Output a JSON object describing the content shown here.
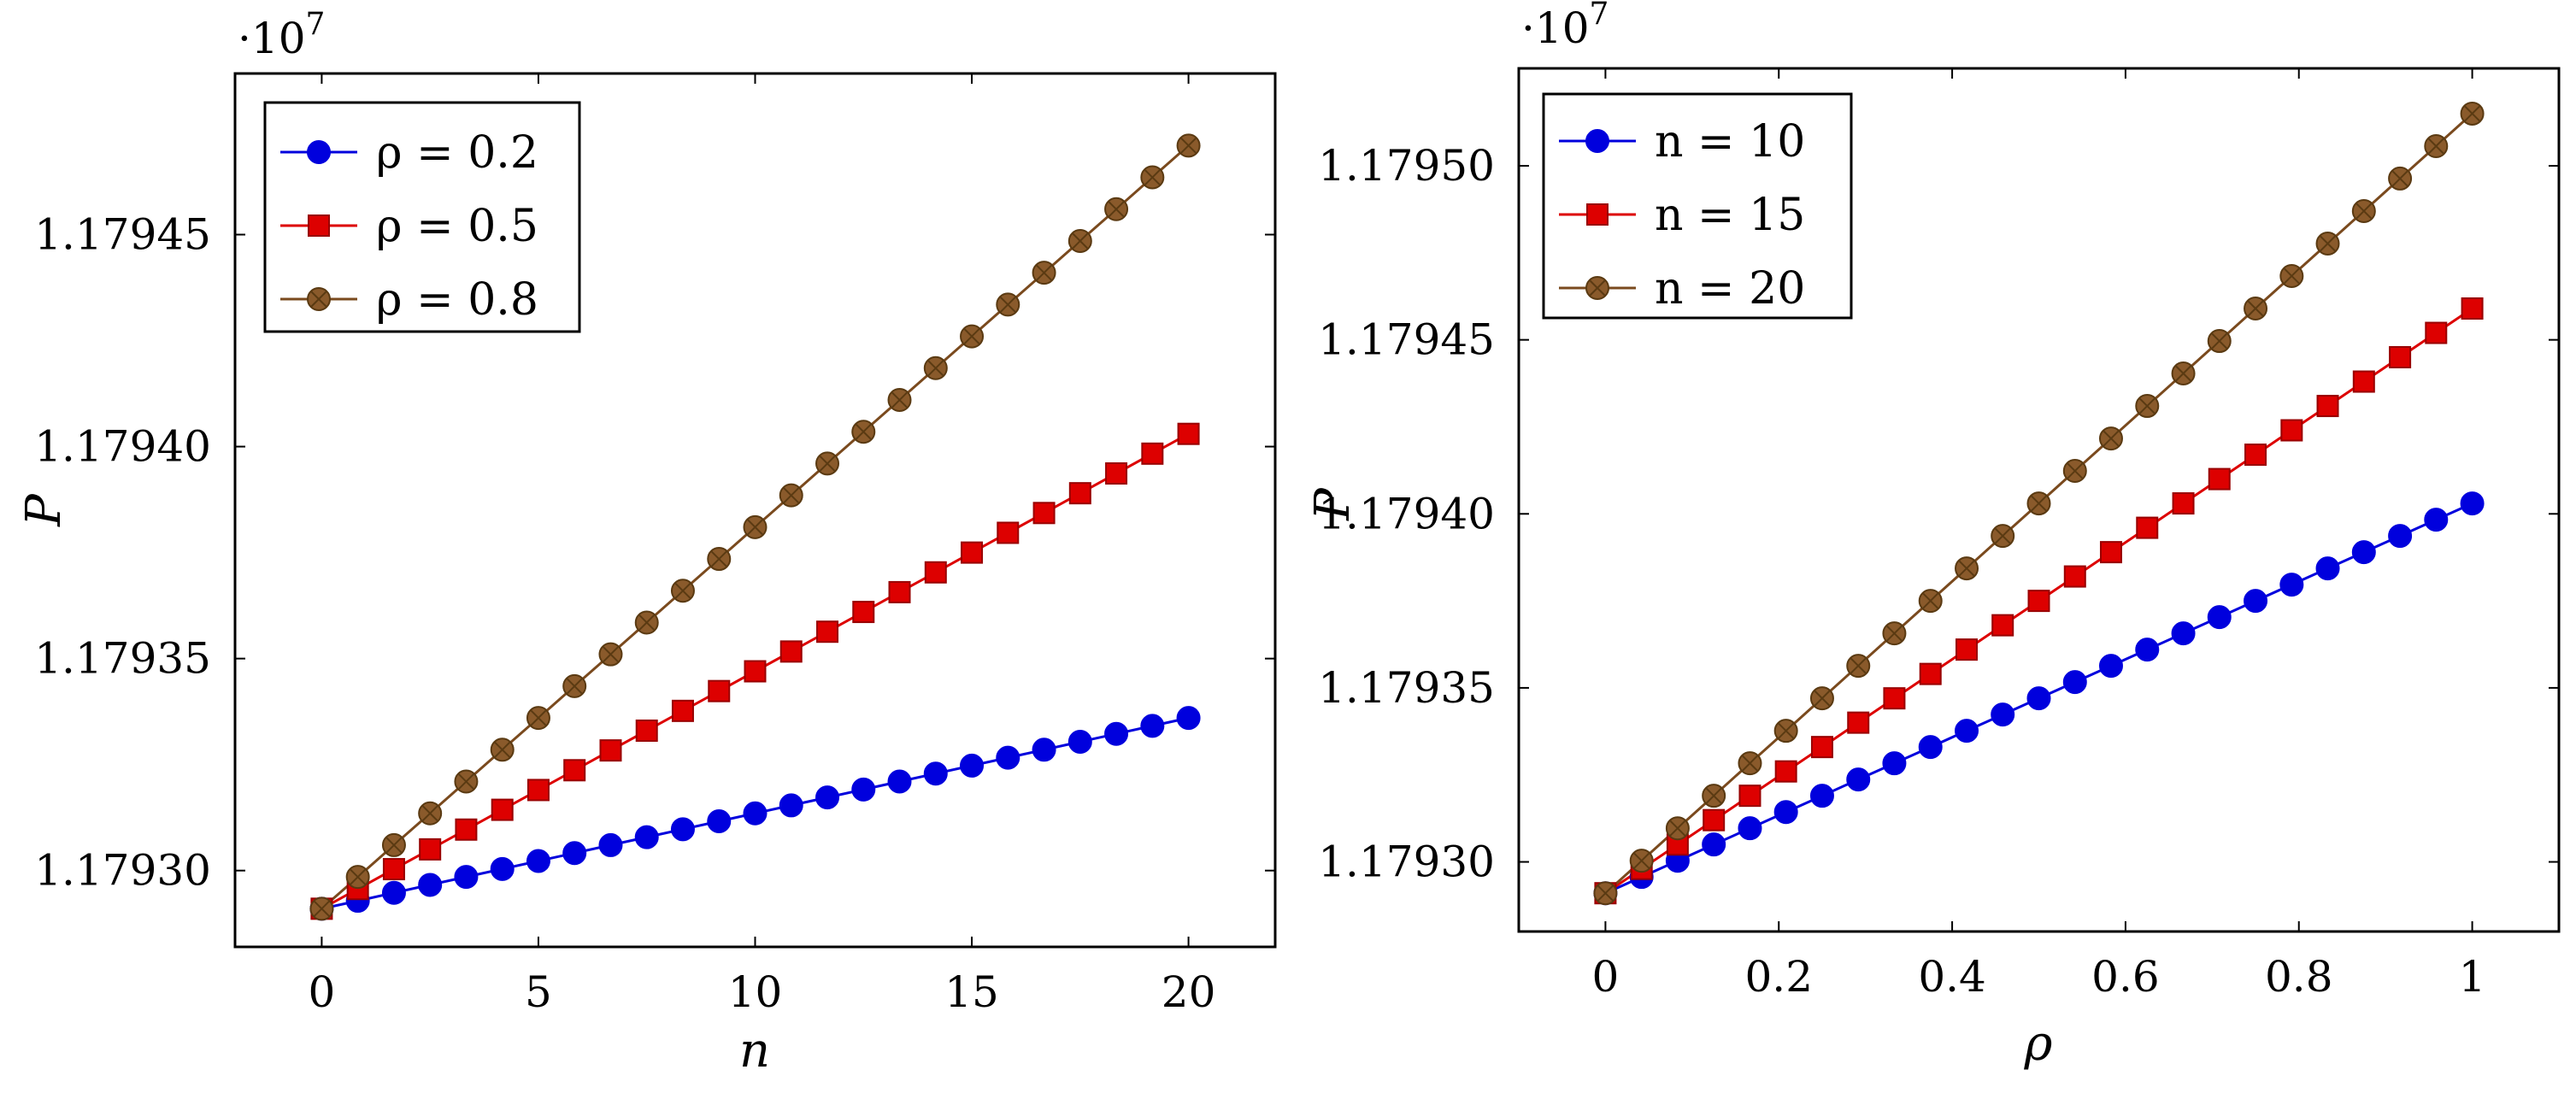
{
  "chart_data": [
    {
      "type": "line",
      "xlabel": "n",
      "ylabel": "P",
      "multiplier": "·10",
      "multiplier_exp": "7",
      "xlim": [
        -2,
        22
      ],
      "ylim": [
        1.179282,
        1.179488
      ],
      "xticks": [
        0,
        5,
        10,
        15,
        20
      ],
      "xtick_labels": [
        "0",
        "5",
        "10",
        "15",
        "20"
      ],
      "yticks": [
        1.1793,
        1.17935,
        1.1794,
        1.17945
      ],
      "ytick_labels": [
        "1.17930",
        "1.17935",
        "1.17940",
        "1.17945"
      ],
      "legend_position": "top-left",
      "x": [
        0,
        0.833,
        1.667,
        2.5,
        3.333,
        4.167,
        5,
        5.833,
        6.667,
        7.5,
        8.333,
        9.167,
        10,
        10.833,
        11.667,
        12.5,
        13.333,
        14.167,
        15,
        15.833,
        16.667,
        17.5,
        18.333,
        19.167,
        20
      ],
      "series": [
        {
          "name": "ρ = 0.2",
          "legend_label": "ρ = 0.2",
          "color": "#0000dd",
          "marker": "circle",
          "start": 1.179291,
          "end": 1.179336
        },
        {
          "name": "ρ = 0.5",
          "legend_label": "ρ = 0.5",
          "color": "#dd0000",
          "marker": "square",
          "start": 1.179291,
          "end": 1.179403
        },
        {
          "name": "ρ = 0.8",
          "legend_label": "ρ = 0.8",
          "color": "#7a4a1e",
          "marker": "otimes",
          "start": 1.179291,
          "end": 1.179471
        }
      ]
    },
    {
      "type": "line",
      "xlabel": "ρ",
      "ylabel": "P",
      "multiplier": "·10",
      "multiplier_exp": "7",
      "xlim": [
        -0.1,
        1.1
      ],
      "ylim": [
        1.17928,
        1.179528
      ],
      "xticks": [
        0,
        0.2,
        0.4,
        0.6,
        0.8,
        1
      ],
      "xtick_labels": [
        "0",
        "0.2",
        "0.4",
        "0.6",
        "0.8",
        "1"
      ],
      "yticks": [
        1.1793,
        1.17935,
        1.1794,
        1.17945,
        1.1795
      ],
      "ytick_labels": [
        "1.17930",
        "1.17935",
        "1.17940",
        "1.17945",
        "1.17950"
      ],
      "legend_position": "top-left",
      "x": [
        0,
        0.0417,
        0.0833,
        0.125,
        0.1667,
        0.2083,
        0.25,
        0.2917,
        0.3333,
        0.375,
        0.4167,
        0.4583,
        0.5,
        0.5417,
        0.5833,
        0.625,
        0.6667,
        0.7083,
        0.75,
        0.7917,
        0.8333,
        0.875,
        0.9167,
        0.9583,
        1
      ],
      "series": [
        {
          "name": "n = 10",
          "legend_label": "n = 10",
          "color": "#0000dd",
          "marker": "circle",
          "start": 1.179291,
          "end": 1.179403
        },
        {
          "name": "n = 15",
          "legend_label": "n = 15",
          "color": "#dd0000",
          "marker": "square",
          "start": 1.179291,
          "end": 1.179459
        },
        {
          "name": "n = 20",
          "legend_label": "n = 20",
          "color": "#7a4a1e",
          "marker": "otimes",
          "start": 1.179291,
          "end": 1.179515
        }
      ]
    }
  ]
}
